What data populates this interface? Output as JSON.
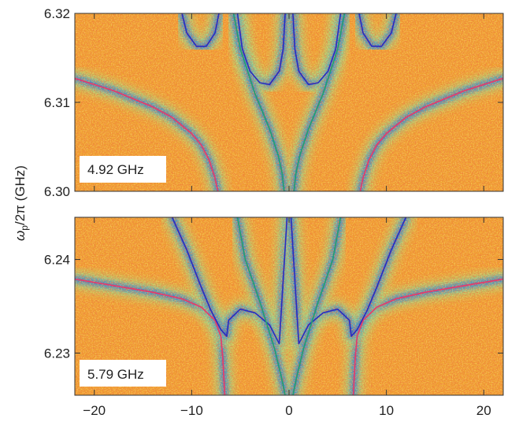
{
  "chart_data": [
    {
      "type": "heatmap",
      "label": "4.92 GHz",
      "ylim": [
        6.3,
        6.32
      ],
      "xlim": [
        -22,
        22
      ],
      "yticks": [
        "6.30",
        "6.31",
        "6.32"
      ],
      "xticks": [],
      "heatmap_palette": [
        "#e0502a",
        "#f08a2a",
        "#f5b845",
        "#f2e24a",
        "#bfe060",
        "#5fd8c0",
        "#2aa8e8",
        "#1f5cd8",
        "#1a1ab8"
      ],
      "curves": [
        {
          "color": "#e8386a",
          "points": [
            [
              -22,
              6.3127
            ],
            [
              -18,
              6.3113
            ],
            [
              -14,
              6.3095
            ],
            [
              -12,
              6.3083
            ],
            [
              -10,
              6.3065
            ],
            [
              -9,
              6.3052
            ],
            [
              -8.2,
              6.3035
            ],
            [
              -7.6,
              6.3015
            ],
            [
              -7.3,
              6.3
            ]
          ]
        },
        {
          "color": "#e8386a",
          "points": [
            [
              7.3,
              6.3
            ],
            [
              7.6,
              6.3015
            ],
            [
              8.2,
              6.3035
            ],
            [
              9,
              6.3052
            ],
            [
              10,
              6.3065
            ],
            [
              12,
              6.3083
            ],
            [
              14,
              6.3095
            ],
            [
              18,
              6.3113
            ],
            [
              22,
              6.3127
            ]
          ]
        },
        {
          "color": "#2a2ac0",
          "points": [
            [
              -11,
              6.32
            ],
            [
              -10.5,
              6.3178
            ],
            [
              -9.5,
              6.3163
            ],
            [
              -8.5,
              6.3163
            ],
            [
              -7.6,
              6.3178
            ],
            [
              -7.2,
              6.32
            ]
          ]
        },
        {
          "color": "#2a2ac0",
          "points": [
            [
              7.2,
              6.32
            ],
            [
              7.6,
              6.3178
            ],
            [
              8.5,
              6.3163
            ],
            [
              9.5,
              6.3163
            ],
            [
              10.5,
              6.3178
            ],
            [
              11,
              6.32
            ]
          ]
        },
        {
          "color": "#2a2ac0",
          "points": [
            [
              -5.3,
              6.32
            ],
            [
              -4.8,
              6.316
            ],
            [
              -4,
              6.3135
            ],
            [
              -3,
              6.3122
            ],
            [
              -2,
              6.312
            ],
            [
              -1,
              6.3135
            ],
            [
              -0.6,
              6.316
            ],
            [
              -0.4,
              6.32
            ]
          ]
        },
        {
          "color": "#2a2ac0",
          "points": [
            [
              0.4,
              6.32
            ],
            [
              0.6,
              6.316
            ],
            [
              1,
              6.3135
            ],
            [
              2,
              6.312
            ],
            [
              3,
              6.3122
            ],
            [
              4,
              6.3135
            ],
            [
              4.8,
              6.316
            ],
            [
              5.3,
              6.32
            ]
          ]
        },
        {
          "color": "#20a070",
          "points": [
            [
              -5.7,
              6.32
            ],
            [
              -5,
              6.316
            ],
            [
              -3.5,
              6.311
            ],
            [
              -2,
              6.307
            ],
            [
              -1.1,
              6.304
            ],
            [
              -0.7,
              6.302
            ],
            [
              -0.5,
              6.3
            ]
          ]
        },
        {
          "color": "#20a070",
          "points": [
            [
              0.5,
              6.3
            ],
            [
              0.7,
              6.302
            ],
            [
              1.1,
              6.304
            ],
            [
              2,
              6.307
            ],
            [
              3.5,
              6.311
            ],
            [
              5,
              6.316
            ],
            [
              5.7,
              6.32
            ]
          ]
        }
      ]
    },
    {
      "type": "heatmap",
      "label": "5.79 GHz",
      "ylim": [
        6.2255,
        6.2445
      ],
      "xlim": [
        -22,
        22
      ],
      "yticks": [
        "6.23",
        "6.24"
      ],
      "xticks": [
        "−20",
        "−10",
        "0",
        "10",
        "20"
      ],
      "heatmap_palette": [
        "#e0502a",
        "#f08a2a",
        "#f5b845",
        "#f2e24a",
        "#bfe060",
        "#5fd8c0",
        "#2aa8e8",
        "#1f5cd8",
        "#1a1ab8"
      ],
      "curves": [
        {
          "color": "#e8386a",
          "points": [
            [
              -22,
              6.2379
            ],
            [
              -18,
              6.2372
            ],
            [
              -14,
              6.2365
            ],
            [
              -11,
              6.2358
            ],
            [
              -9,
              6.2349
            ],
            [
              -7.6,
              6.2335
            ],
            [
              -7,
              6.2318
            ],
            [
              -6.8,
              6.2295
            ],
            [
              -6.6,
              6.2255
            ]
          ]
        },
        {
          "color": "#e8386a",
          "points": [
            [
              6.6,
              6.2255
            ],
            [
              6.8,
              6.2295
            ],
            [
              7,
              6.2318
            ],
            [
              7.6,
              6.2335
            ],
            [
              9,
              6.2349
            ],
            [
              11,
              6.2358
            ],
            [
              14,
              6.2365
            ],
            [
              18,
              6.2372
            ],
            [
              22,
              6.2379
            ]
          ]
        },
        {
          "color": "#2a2ac0",
          "points": [
            [
              -12,
              6.2445
            ],
            [
              -10.5,
              6.241
            ],
            [
              -9,
              6.237
            ],
            [
              -8,
              6.2345
            ],
            [
              -7,
              6.2325
            ],
            [
              -6.4,
              6.2318
            ],
            [
              -6.2,
              6.2335
            ],
            [
              -5,
              6.2347
            ],
            [
              -3.5,
              6.2343
            ],
            [
              -2,
              6.233
            ],
            [
              -1,
              6.231
            ],
            [
              -0.2,
              6.2445
            ]
          ]
        },
        {
          "color": "#2a2ac0",
          "points": [
            [
              0.2,
              6.2445
            ],
            [
              1,
              6.231
            ],
            [
              2,
              6.233
            ],
            [
              3.5,
              6.2343
            ],
            [
              5,
              6.2347
            ],
            [
              6.2,
              6.2335
            ],
            [
              6.4,
              6.2318
            ],
            [
              7,
              6.2325
            ],
            [
              8,
              6.2345
            ],
            [
              9,
              6.237
            ],
            [
              10.5,
              6.241
            ],
            [
              12,
              6.2445
            ]
          ]
        },
        {
          "color": "#20a070",
          "points": [
            [
              -5.3,
              6.2445
            ],
            [
              -4.5,
              6.24
            ],
            [
              -3,
              6.2355
            ],
            [
              -1.5,
              6.2305
            ],
            [
              -0.8,
              6.2275
            ],
            [
              -0.4,
              6.2255
            ]
          ]
        },
        {
          "color": "#20a070",
          "points": [
            [
              0.4,
              6.2255
            ],
            [
              0.8,
              6.2275
            ],
            [
              1.5,
              6.2305
            ],
            [
              3,
              6.2355
            ],
            [
              4.5,
              6.24
            ],
            [
              5.3,
              6.2445
            ]
          ]
        }
      ]
    }
  ],
  "ylabel_omega": "ω",
  "ylabel_sub": "p",
  "ylabel_rest": "/2π (GHz)"
}
